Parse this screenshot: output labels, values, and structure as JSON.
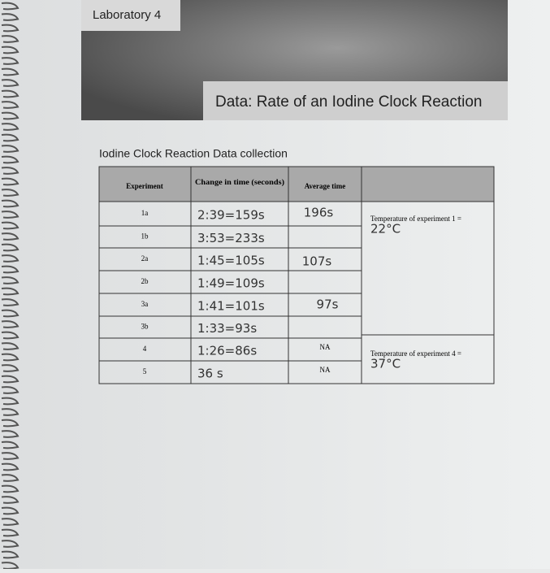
{
  "header": {
    "lab": "Laboratory 4",
    "title": "Data: Rate of an Iodine Clock Reaction"
  },
  "section_title": "Iodine Clock Reaction Data collection",
  "table": {
    "headers": [
      "Experiment",
      "Change in time (seconds)",
      "Average time"
    ],
    "rows": [
      [
        "1a",
        "2:39=159s",
        "196s"
      ],
      [
        "1b",
        "3:53=233s"
      ],
      [
        "2a",
        "1:45=105s",
        "107s"
      ],
      [
        "2b",
        "1:49=109s"
      ],
      [
        "3a",
        "1:41=101s",
        "97s"
      ],
      [
        "3b",
        "1:33=93s"
      ],
      [
        "4",
        "1:26=86s",
        "NA"
      ],
      [
        "5",
        "36 s",
        "NA"
      ]
    ],
    "notes": [
      {
        "label": "Temperature of experiment 1 =",
        "value": "22°C"
      },
      {
        "label": "Temperature of experiment 4 =",
        "value": "37°C"
      }
    ]
  }
}
